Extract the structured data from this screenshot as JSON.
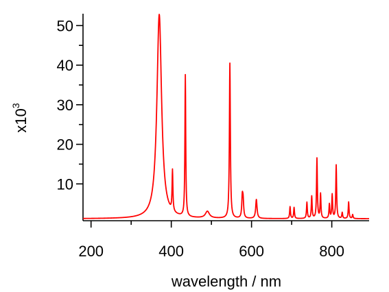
{
  "chart_data": {
    "type": "line",
    "title": "",
    "xlabel": "wavelength / nm",
    "ylabel": "x10",
    "ylabel_superscript": "3",
    "xlim": [
      180,
      893
    ],
    "ylim": [
      0.7,
      53
    ],
    "x_ticks": [
      200,
      400,
      600,
      800
    ],
    "y_ticks": [
      10,
      20,
      30,
      40,
      50
    ],
    "grid": false,
    "legend": "none",
    "line_color": "#ff0000",
    "baseline": 1.2,
    "peaks": [
      {
        "x": 370,
        "y": 52.8,
        "width": 7
      },
      {
        "x": 403,
        "y": 11.5,
        "width": 1.2
      },
      {
        "x": 435,
        "y": 37.0,
        "width": 1.2
      },
      {
        "x": 490,
        "y": 2.9,
        "width": 6
      },
      {
        "x": 546,
        "y": 40.4,
        "width": 1.4
      },
      {
        "x": 577,
        "y": 6.3,
        "width": 1.6
      },
      {
        "x": 579,
        "y": 5.2,
        "width": 1.6
      },
      {
        "x": 612,
        "y": 6.0,
        "width": 2
      },
      {
        "x": 696,
        "y": 4.2,
        "width": 1.2
      },
      {
        "x": 706,
        "y": 4.0,
        "width": 1.2
      },
      {
        "x": 738,
        "y": 5.3,
        "width": 1.2
      },
      {
        "x": 750,
        "y": 6.8,
        "width": 1.2
      },
      {
        "x": 763,
        "y": 16.4,
        "width": 1.2
      },
      {
        "x": 772,
        "y": 7.4,
        "width": 1.2
      },
      {
        "x": 794,
        "y": 4.8,
        "width": 1.2
      },
      {
        "x": 801,
        "y": 7.2,
        "width": 1.2
      },
      {
        "x": 811,
        "y": 14.7,
        "width": 1.2
      },
      {
        "x": 826,
        "y": 2.7,
        "width": 1.2
      },
      {
        "x": 842,
        "y": 5.4,
        "width": 1.2
      },
      {
        "x": 852,
        "y": 2.2,
        "width": 1.2
      }
    ]
  }
}
